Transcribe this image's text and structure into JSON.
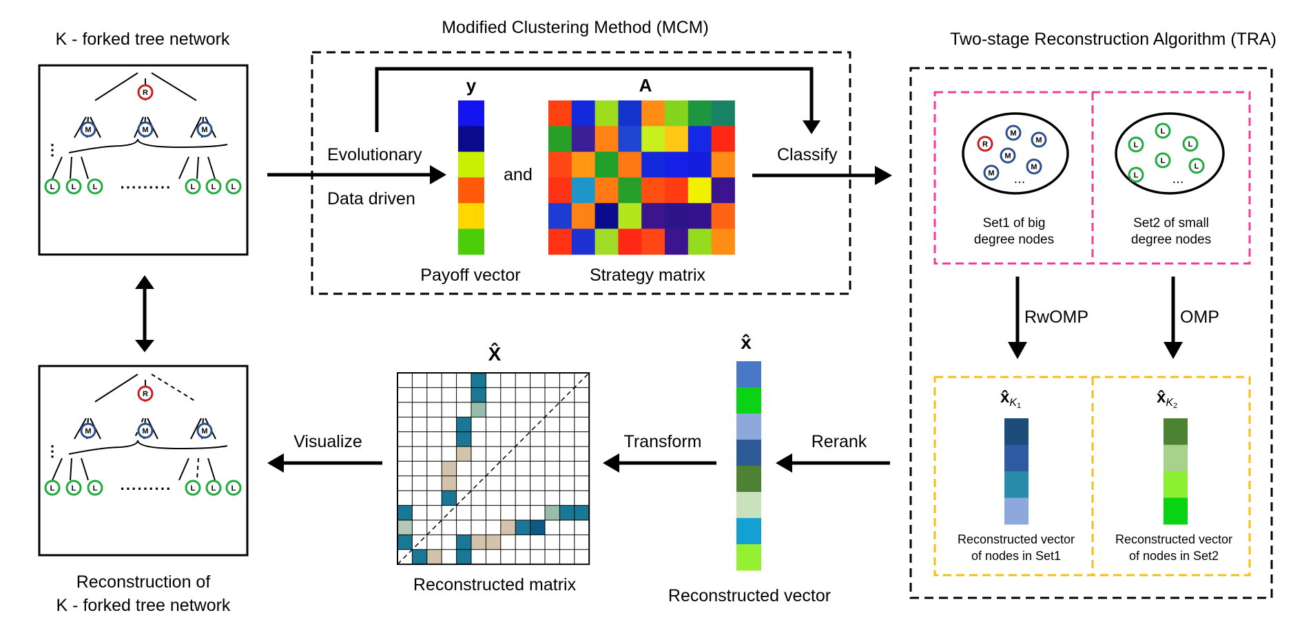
{
  "titles": {
    "tree": "K - forked tree network",
    "mcm": "Modified Clustering Method (MCM)",
    "tra": "Two-stage Reconstruction Algorithm (TRA)",
    "reconstruction_line1": "Reconstruction of",
    "reconstruction_line2": "K - forked tree network"
  },
  "mcm": {
    "evolutionary": "Evolutionary",
    "data_driven": "Data driven",
    "and": "and",
    "classify": "Classify",
    "y_symbol": "y",
    "a_symbol": "A",
    "payoff_vector": "Payoff vector",
    "strategy_matrix": "Strategy matrix",
    "payoff_colors": [
      "#1414f0",
      "#0a0a8c",
      "#c8f000",
      "#ff5a0a",
      "#ffd700",
      "#4ccd0a"
    ],
    "strategy_colors": [
      [
        "#ff4010",
        "#1428dc",
        "#a0dc1e",
        "#1432cc",
        "#ff8c14",
        "#84d41e",
        "#1e9640",
        "#1a8264"
      ],
      [
        "#28a028",
        "#3c1e96",
        "#ff8214",
        "#1e46d2",
        "#c8f01e",
        "#ffc814",
        "#1428e6",
        "#ff2814"
      ],
      [
        "#ff4614",
        "#ff9614",
        "#20a028",
        "#ff7814",
        "#1428dc",
        "#1420e6",
        "#141edc",
        "#ff8c14"
      ],
      [
        "#ff3214",
        "#1e96c8",
        "#ff7a14",
        "#26a02a",
        "#ff5014",
        "#ff3c14",
        "#f0f000",
        "#3c1490"
      ],
      [
        "#1e3cd2",
        "#ff8214",
        "#0a0a8c",
        "#b4e61e",
        "#3c148c",
        "#2d148a",
        "#34128e",
        "#ff6414"
      ],
      [
        "#ff3214",
        "#1e32d2",
        "#a0dc28",
        "#ff2814",
        "#ff4614",
        "#3c1490",
        "#96dc1e",
        "#ff8c14"
      ]
    ]
  },
  "tra": {
    "set1_line1": "Set1 of big",
    "set1_line2": "degree nodes",
    "set2_line1": "Set2 of small",
    "set2_line2": "degree nodes",
    "rwomp": "RwOMP",
    "omp": "OMP",
    "xk1_base": "x̂",
    "xk1_sub": "K",
    "xk1_subsub": "1",
    "xk2_base": "x̂",
    "xk2_sub": "K",
    "xk2_subsub": "2",
    "vec1_line1": "Reconstructed vector",
    "vec1_line2": "of nodes in Set1",
    "vec2_line1": "Reconstructed vector",
    "vec2_line2": "of nodes in Set2",
    "vec1_colors": [
      "#1e4c7a",
      "#2d5aa0",
      "#268caa",
      "#8ca8dc"
    ],
    "vec2_colors": [
      "#4c8232",
      "#a8d28c",
      "#8cf032",
      "#0ad214"
    ],
    "ellipsis": "...",
    "set1_nodes": [
      "R",
      "M",
      "M",
      "M",
      "M",
      "M"
    ],
    "set2_nodes": [
      "L",
      "L",
      "L",
      "L",
      "L",
      "L"
    ]
  },
  "bottom": {
    "rerank": "Rerank",
    "transform": "Transform",
    "visualize": "Visualize",
    "x_hat_vector": "x̂",
    "x_hat_matrix": "X̂",
    "reconstructed_vector": "Reconstructed vector",
    "reconstructed_matrix": "Reconstructed matrix",
    "vector_colors": [
      "#4a78c8",
      "#0ad214",
      "#8ca8dc",
      "#2e5a98",
      "#4c8232",
      "#c8e2be",
      "#14a0d2",
      "#96f032"
    ],
    "matrix_size": 13,
    "matrix_cells": [
      {
        "r": 0,
        "c": 5,
        "color": "#1a7896"
      },
      {
        "r": 1,
        "c": 5,
        "color": "#1a7896"
      },
      {
        "r": 2,
        "c": 5,
        "color": "#96beaa"
      },
      {
        "r": 3,
        "c": 4,
        "color": "#1a7896"
      },
      {
        "r": 4,
        "c": 4,
        "color": "#1a7896"
      },
      {
        "r": 5,
        "c": 4,
        "color": "#d2c3aa"
      },
      {
        "r": 6,
        "c": 3,
        "color": "#d2c3aa"
      },
      {
        "r": 7,
        "c": 3,
        "color": "#d2c3aa"
      },
      {
        "r": 8,
        "c": 3,
        "color": "#1a7896"
      },
      {
        "r": 9,
        "c": 0,
        "color": "#1a7896"
      },
      {
        "r": 9,
        "c": 10,
        "color": "#96beaa"
      },
      {
        "r": 9,
        "c": 11,
        "color": "#1a7896"
      },
      {
        "r": 9,
        "c": 12,
        "color": "#1a7896"
      },
      {
        "r": 10,
        "c": 0,
        "color": "#b4c8b4"
      },
      {
        "r": 10,
        "c": 7,
        "color": "#d2c3aa"
      },
      {
        "r": 10,
        "c": 8,
        "color": "#1a7896"
      },
      {
        "r": 10,
        "c": 9,
        "color": "#0a5a82"
      },
      {
        "r": 11,
        "c": 0,
        "color": "#1a7896"
      },
      {
        "r": 11,
        "c": 4,
        "color": "#1a7896"
      },
      {
        "r": 11,
        "c": 5,
        "color": "#d2c3aa"
      },
      {
        "r": 11,
        "c": 6,
        "color": "#d2c3aa"
      },
      {
        "r": 12,
        "c": 1,
        "color": "#1a7896"
      },
      {
        "r": 12,
        "c": 2,
        "color": "#d2c3aa"
      },
      {
        "r": 12,
        "c": 4,
        "color": "#1a7896"
      }
    ]
  },
  "tree_nodes": {
    "root": "R",
    "middle": "M",
    "leaf": "L",
    "dots": "·········",
    "vdots": "⋮"
  },
  "colors": {
    "root": "#c81e1e",
    "middle": "#2d4e8c",
    "leaf": "#1eaa3c",
    "set_box": "#f03c96",
    "result_box": "#f5be14"
  }
}
